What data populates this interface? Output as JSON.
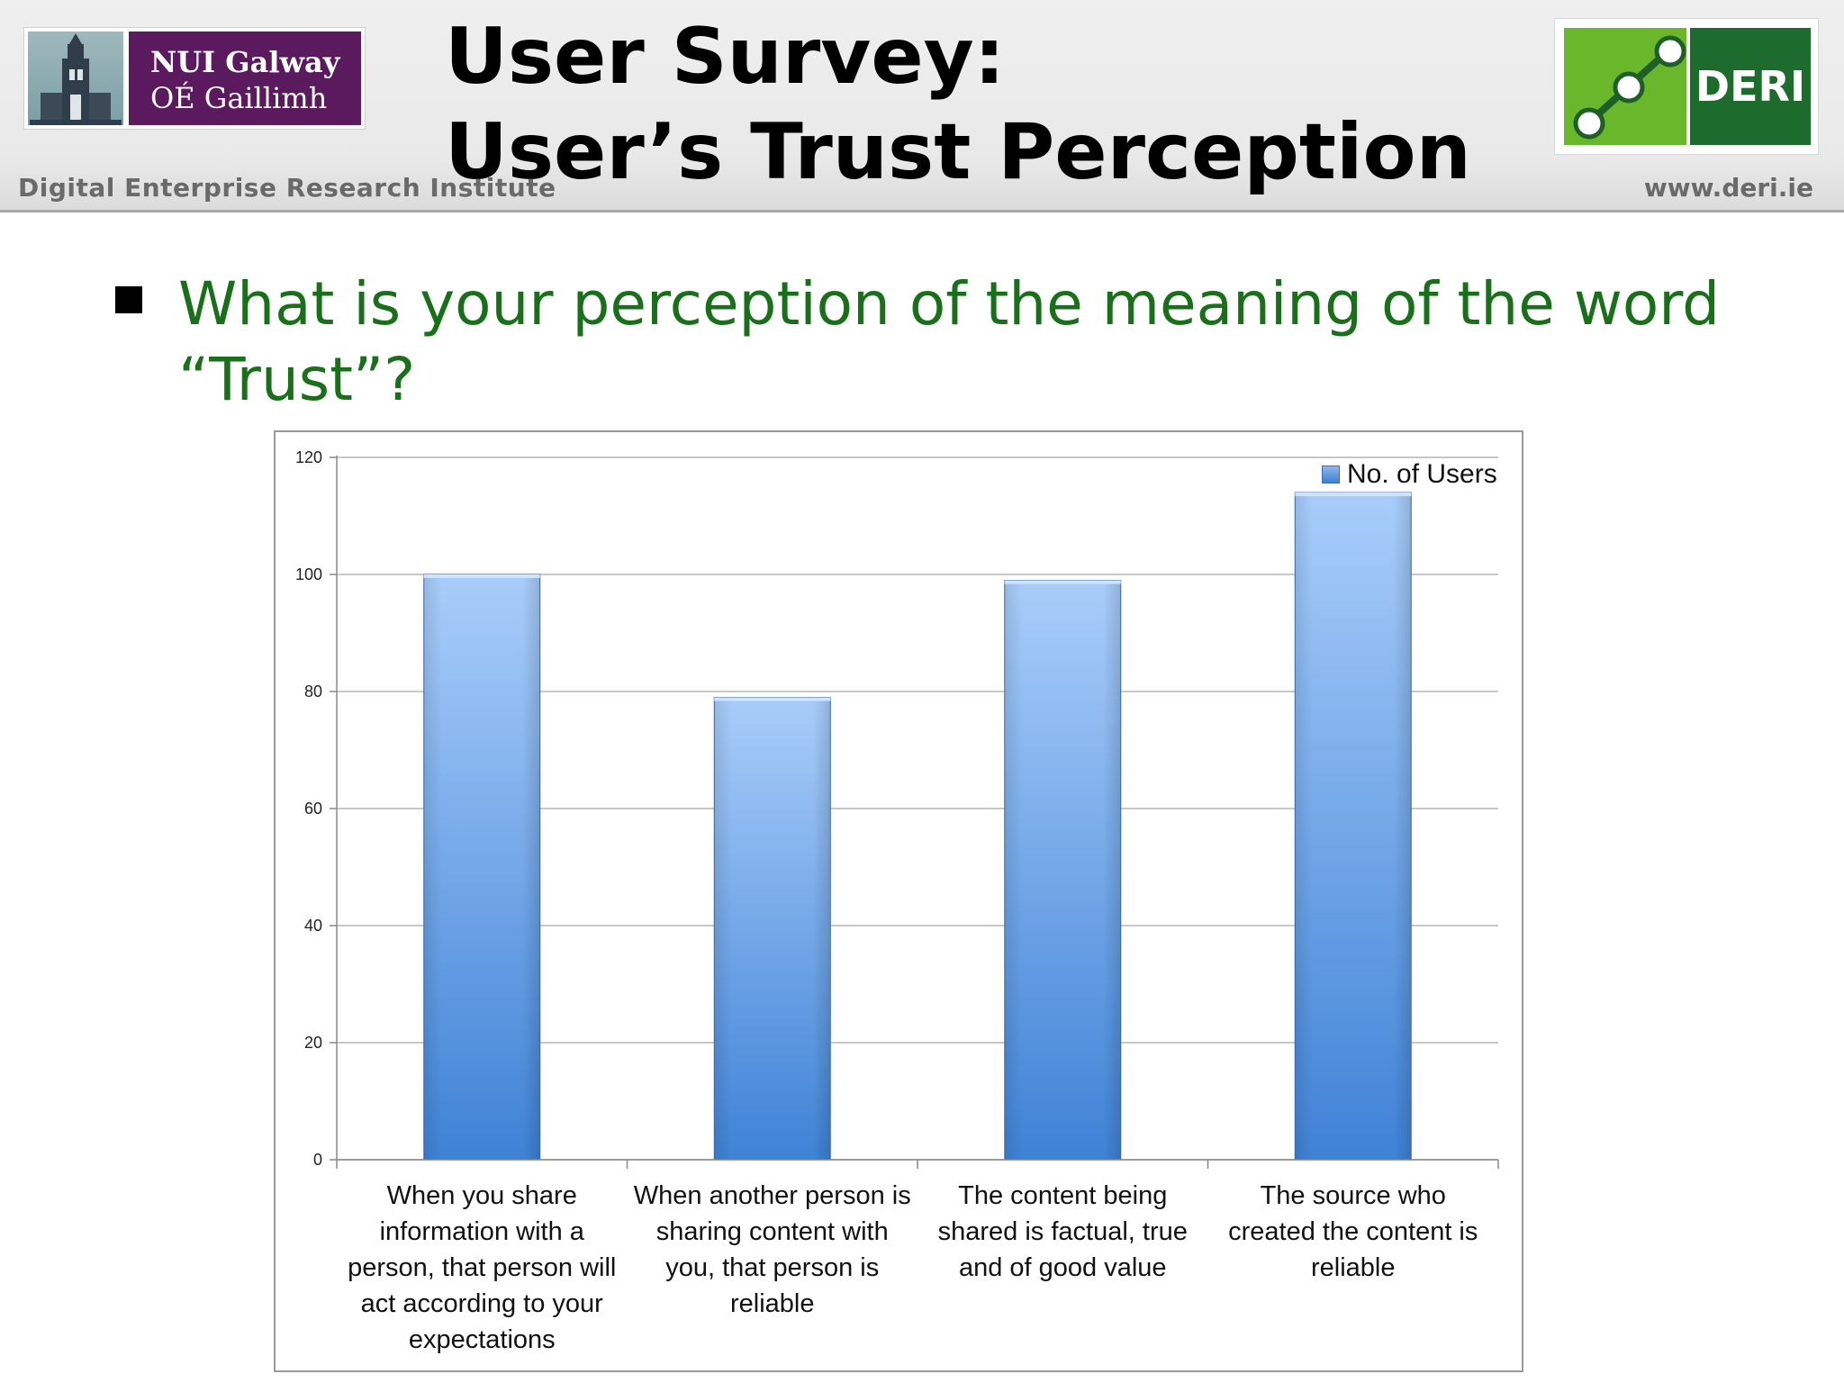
{
  "header": {
    "nui_logo": {
      "line1": "NUI Galway",
      "line2": "OÉ Gaillimh"
    },
    "title_line1": "User Survey:",
    "title_line2": "User’s Trust Perception",
    "institute": "Digital Enterprise Research Institute",
    "website": "www.deri.ie",
    "deri_logo_text": "DERI"
  },
  "question": "What is your perception of the meaning of the word “Trust”?",
  "colors": {
    "question_text": "#1a6f1a",
    "bar_top": "#a9cdfa",
    "bar_bottom": "#3f82d6",
    "nui_purple": "#5b1a5e",
    "deri_light_green": "#6ab72c",
    "deri_dark_green": "#1e6b2e"
  },
  "chart_data": {
    "type": "bar",
    "categories": [
      "When you share information with a person, that person will act according to your expectations",
      "When another person is sharing content with you, that person is reliable",
      "The content being shared is factual, true and of good value",
      "The source who created the content is reliable"
    ],
    "series": [
      {
        "name": "No. of Users",
        "values": [
          100,
          79,
          99,
          114
        ]
      }
    ],
    "ylim": [
      0,
      120
    ],
    "yticks": [
      "0",
      "20",
      "40",
      "60",
      "80",
      "100",
      "120"
    ],
    "grid": true,
    "legend": "top-right"
  }
}
